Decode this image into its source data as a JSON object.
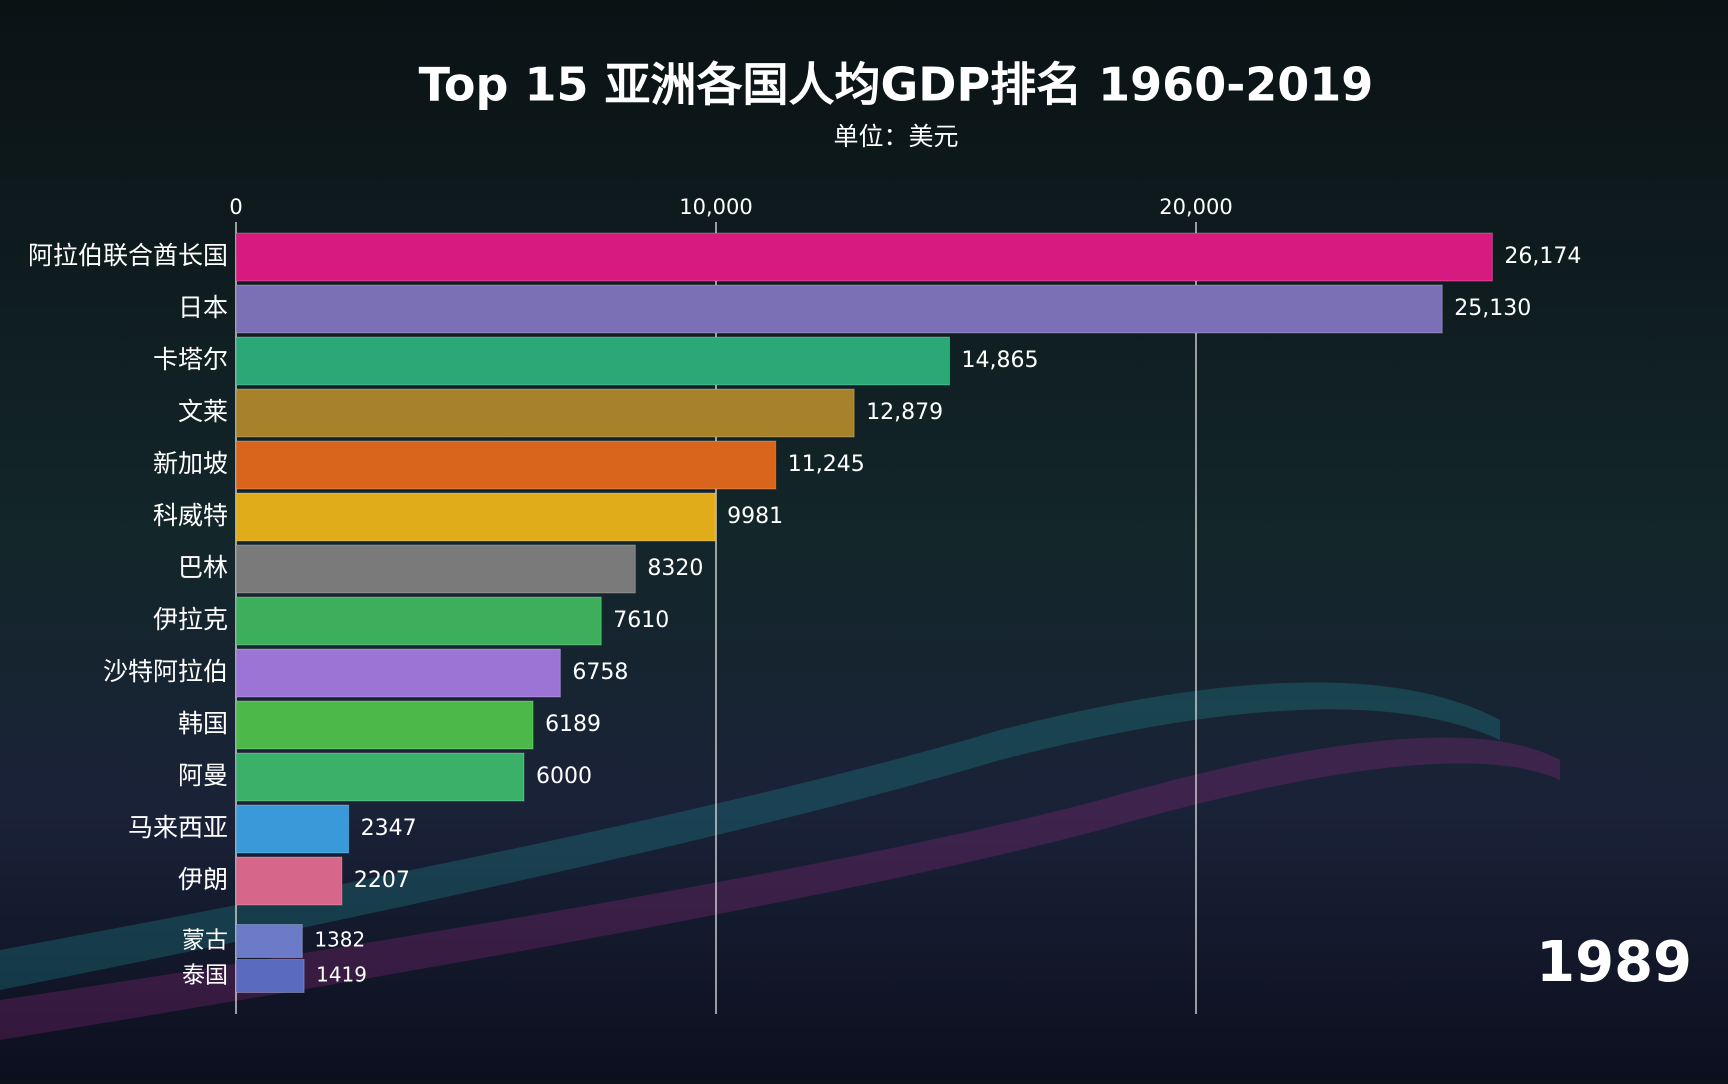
{
  "chart_data": {
    "type": "bar",
    "orientation": "horizontal",
    "title": "Top 15 亚洲各国人均GDP排名 1960-2019",
    "subtitle": "单位：美元",
    "annotation": "1989",
    "categories": [
      "阿拉伯联合酋长国",
      "日本",
      "卡塔尔",
      "文莱",
      "新加坡",
      "科威特",
      "巴林",
      "伊拉克",
      "沙特阿拉伯",
      "韩国",
      "阿曼",
      "马来西亚",
      "伊朗",
      "蒙古",
      "泰国"
    ],
    "values": [
      26174,
      25130,
      14865,
      12879,
      11245,
      9981,
      8320,
      7610,
      6758,
      6189,
      6000,
      2347,
      2207,
      1382,
      1419
    ],
    "value_labels": [
      "26,174",
      "25,130",
      "14,865",
      "12,879",
      "11,245",
      "9981",
      "8320",
      "7610",
      "6758",
      "6189",
      "6000",
      "2347",
      "2207",
      "1382",
      "1419"
    ],
    "colors": [
      "#d61a7f",
      "#7b6fb5",
      "#2aa876",
      "#a8822a",
      "#d9641c",
      "#e0ac1a",
      "#7a7a7a",
      "#3cae5c",
      "#9b74d6",
      "#4cb84a",
      "#3ab069",
      "#3a9ad9",
      "#d6668a",
      "#6c7bc7",
      "#5a6bbf"
    ],
    "xlim": [
      0,
      30000
    ],
    "xticks": [
      0,
      {
        "value": 10000,
        "label": "10,000"
      },
      {
        "value": 20000,
        "label": "20,000"
      }
    ],
    "grid": true
  }
}
